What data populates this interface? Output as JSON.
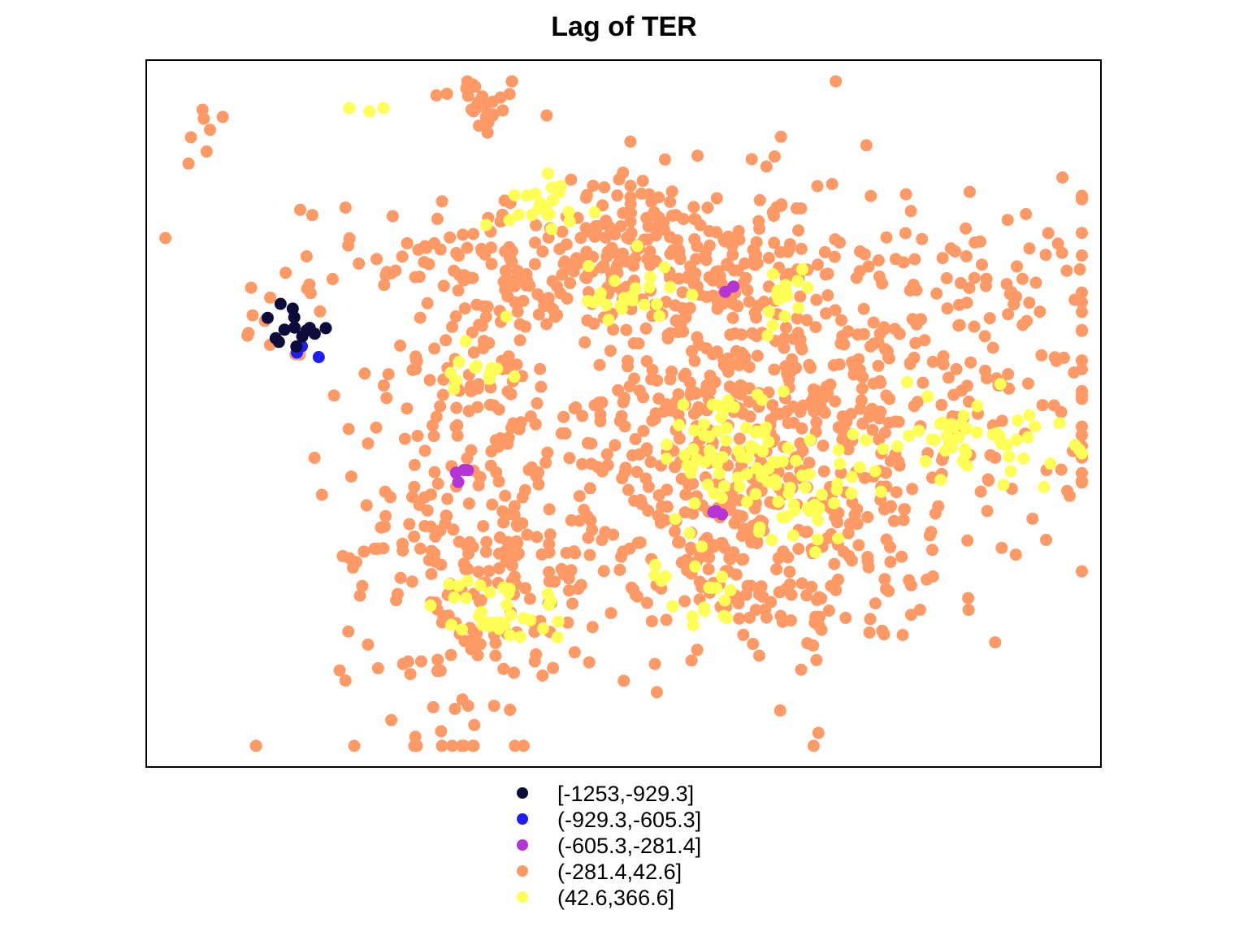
{
  "chart_data": {
    "type": "scatter",
    "title": "Lag of TER",
    "xlabel": "",
    "ylabel": "",
    "grid": false,
    "legend_position": "bottom",
    "classes": [
      {
        "label": "[-1253,-929.3]",
        "color": "#0D0B3A"
      },
      {
        "label": "(-929.3,-605.3]",
        "color": "#1E1EF0"
      },
      {
        "label": "(-605.3,-281.4]",
        "color": "#B534D6"
      },
      {
        "label": "(-281.4,42.6]",
        "color": "#FF9966"
      },
      {
        "label": "(42.6,366.6]",
        "color": "#FFFF55"
      }
    ],
    "clusters": [
      {
        "class": 3,
        "cx": 0.35,
        "cy": 0.94,
        "sx": 0.025,
        "sy": 0.025,
        "n": 28
      },
      {
        "class": 3,
        "cx": 0.06,
        "cy": 0.89,
        "sx": 0.018,
        "sy": 0.03,
        "n": 7
      },
      {
        "class": 3,
        "cx": 0.15,
        "cy": 0.64,
        "sx": 0.03,
        "sy": 0.035,
        "n": 14
      },
      {
        "class": 3,
        "cx": 0.47,
        "cy": 0.72,
        "sx": 0.12,
        "sy": 0.06,
        "n": 260
      },
      {
        "class": 3,
        "cx": 0.77,
        "cy": 0.55,
        "sx": 0.13,
        "sy": 0.13,
        "n": 380
      },
      {
        "class": 3,
        "cx": 0.59,
        "cy": 0.5,
        "sx": 0.08,
        "sy": 0.16,
        "n": 330
      },
      {
        "class": 3,
        "cx": 0.65,
        "cy": 0.3,
        "sx": 0.13,
        "sy": 0.07,
        "n": 180
      },
      {
        "class": 3,
        "cx": 0.34,
        "cy": 0.3,
        "sx": 0.07,
        "sy": 0.14,
        "n": 240
      },
      {
        "class": 3,
        "cx": 0.35,
        "cy": 0.55,
        "sx": 0.05,
        "sy": 0.07,
        "n": 60
      },
      {
        "class": 0,
        "cx": 0.155,
        "cy": 0.63,
        "sx": 0.015,
        "sy": 0.015,
        "n": 14
      },
      {
        "class": 1,
        "cx": 0.155,
        "cy": 0.59,
        "sx": 0.018,
        "sy": 0.006,
        "n": 3
      },
      {
        "class": 2,
        "cx": 0.34,
        "cy": 0.42,
        "sx": 0.01,
        "sy": 0.01,
        "n": 4
      },
      {
        "class": 2,
        "cx": 0.6,
        "cy": 0.36,
        "sx": 0.008,
        "sy": 0.006,
        "n": 3
      },
      {
        "class": 2,
        "cx": 0.61,
        "cy": 0.67,
        "sx": 0.006,
        "sy": 0.006,
        "n": 2
      },
      {
        "class": 4,
        "cx": 0.23,
        "cy": 0.93,
        "sx": 0.008,
        "sy": 0.006,
        "n": 3
      },
      {
        "class": 4,
        "cx": 0.43,
        "cy": 0.8,
        "sx": 0.025,
        "sy": 0.018,
        "n": 22
      },
      {
        "class": 4,
        "cx": 0.5,
        "cy": 0.67,
        "sx": 0.025,
        "sy": 0.028,
        "n": 25
      },
      {
        "class": 4,
        "cx": 0.67,
        "cy": 0.65,
        "sx": 0.018,
        "sy": 0.03,
        "n": 15
      },
      {
        "class": 4,
        "cx": 0.35,
        "cy": 0.55,
        "sx": 0.018,
        "sy": 0.035,
        "n": 15
      },
      {
        "class": 4,
        "cx": 0.61,
        "cy": 0.45,
        "sx": 0.035,
        "sy": 0.045,
        "n": 60
      },
      {
        "class": 4,
        "cx": 0.68,
        "cy": 0.39,
        "sx": 0.035,
        "sy": 0.035,
        "n": 45
      },
      {
        "class": 4,
        "cx": 0.86,
        "cy": 0.47,
        "sx": 0.055,
        "sy": 0.03,
        "n": 55
      },
      {
        "class": 4,
        "cx": 0.37,
        "cy": 0.22,
        "sx": 0.035,
        "sy": 0.025,
        "n": 35
      },
      {
        "class": 4,
        "cx": 0.58,
        "cy": 0.24,
        "sx": 0.02,
        "sy": 0.025,
        "n": 18
      },
      {
        "class": 4,
        "cx": 0.53,
        "cy": 0.28,
        "sx": 0.005,
        "sy": 0.005,
        "n": 2
      }
    ]
  }
}
